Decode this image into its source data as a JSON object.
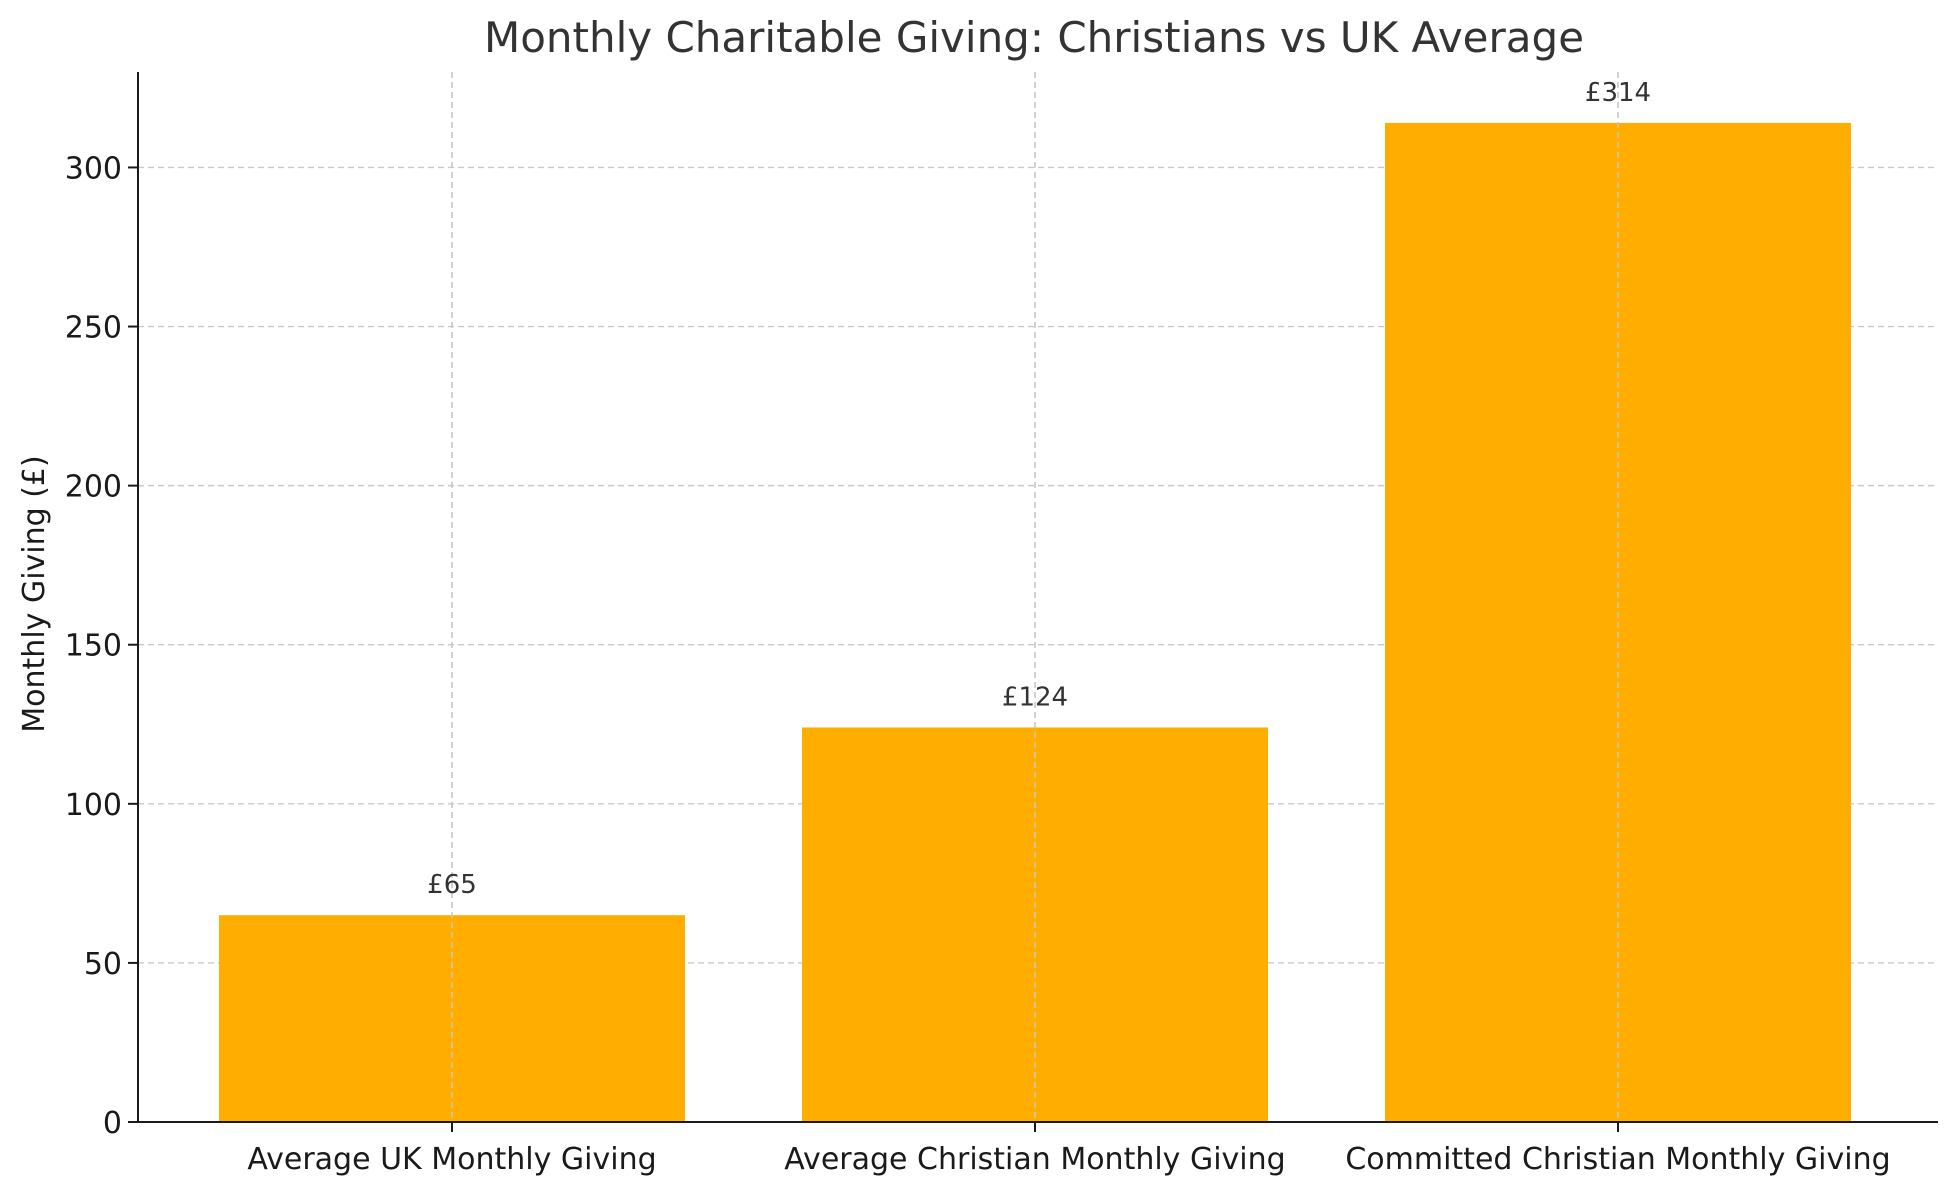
{
  "chart_data": {
    "type": "bar",
    "title": "Monthly Charitable Giving: Christians vs UK Average",
    "xlabel": "",
    "ylabel": "Monthly Giving (£)",
    "categories": [
      "Average UK Monthly Giving",
      "Average Christian Monthly Giving",
      "Committed Christian Monthly Giving"
    ],
    "values": [
      65,
      124,
      314
    ],
    "value_labels": [
      "£65",
      "£124",
      "£314"
    ],
    "ylim": [
      0,
      330
    ],
    "yticks": [
      0,
      50,
      100,
      150,
      200,
      250,
      300
    ],
    "grid": true,
    "colors": {
      "bar": "#FFAE00",
      "grid": "#c9c9c9",
      "axis": "#1a1a1a"
    }
  }
}
